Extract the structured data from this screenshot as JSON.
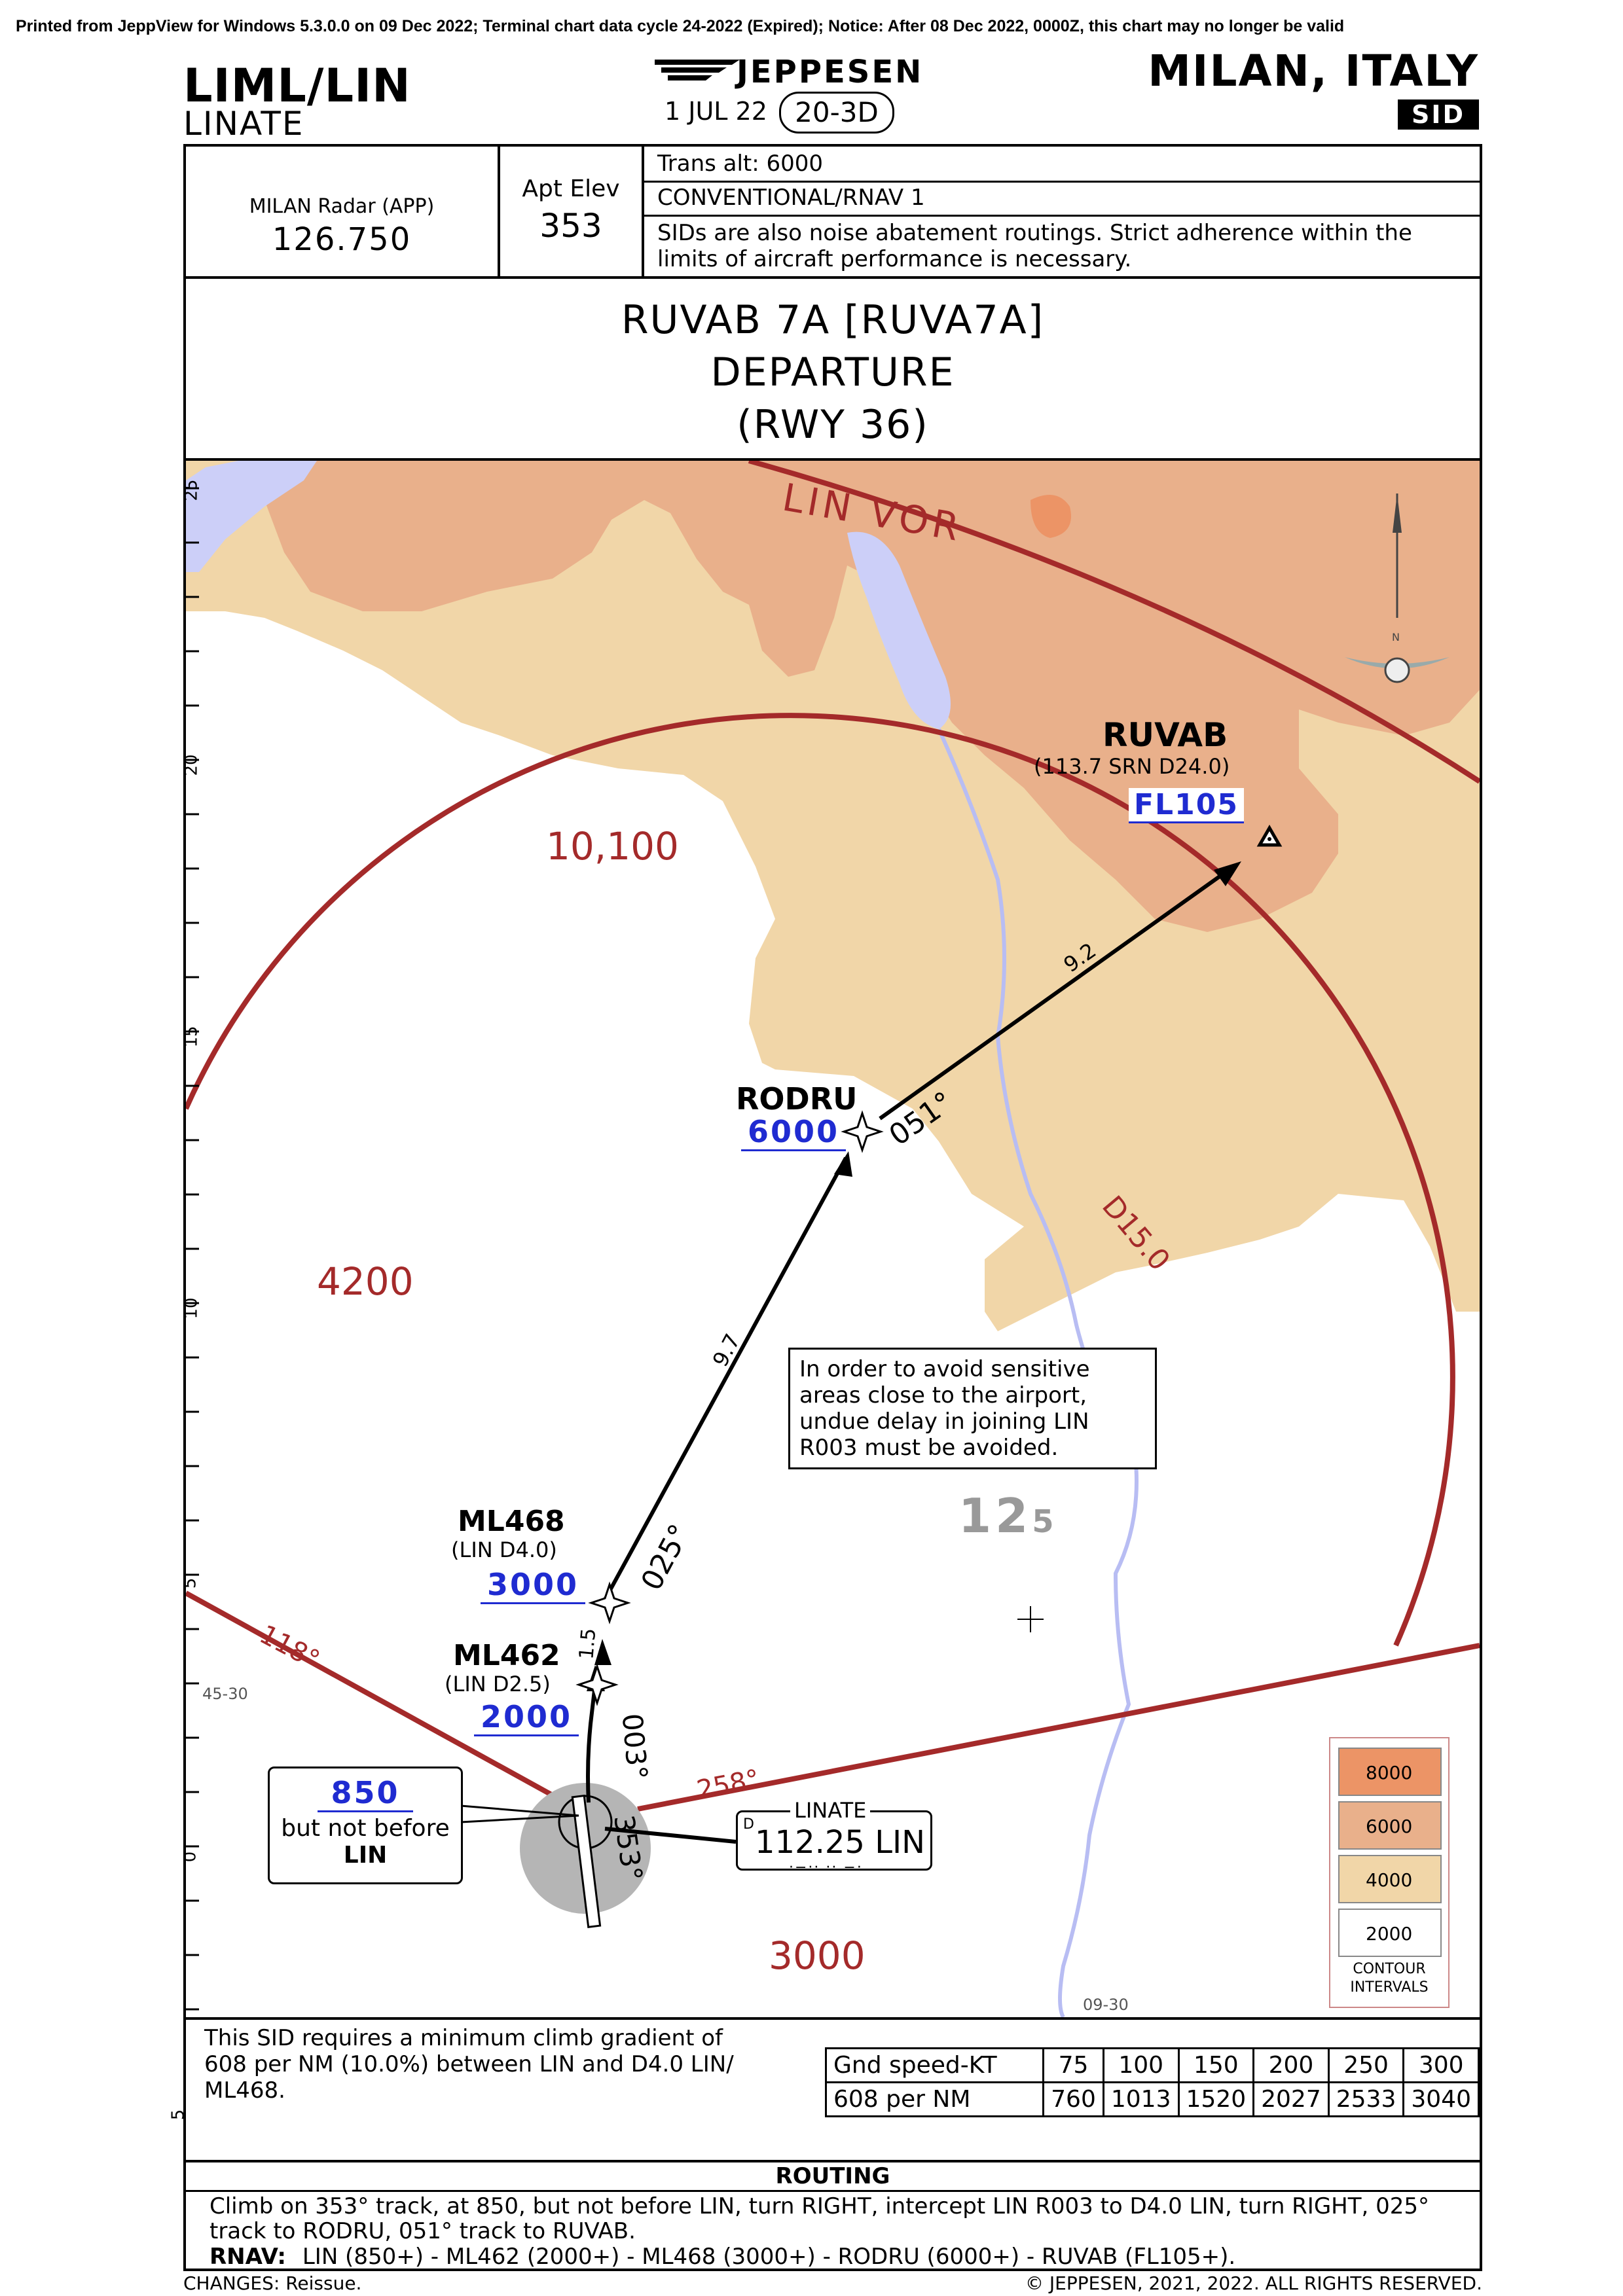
{
  "print_notice": "Printed from JeppView for Windows 5.3.0.0 on 09 Dec 2022; Terminal chart data cycle 24-2022 (Expired); Notice: After 08 Dec 2022, 0000Z, this chart may no longer be valid",
  "header": {
    "icao_iata": "LIML/LIN",
    "airport_name": "LINATE",
    "brand": "JEPPESEN",
    "effective_date": "1 JUL 22",
    "chart_number": "20-3D",
    "city_country": "MILAN, ITALY",
    "chart_type": "SID"
  },
  "info_strip": {
    "radar_label": "MILAN Radar (APP)",
    "radar_freq": "126.750",
    "elev_label": "Apt Elev",
    "elev_value": "353",
    "trans_alt": "Trans alt: 6000",
    "nav_spec": "CONVENTIONAL/RNAV 1",
    "noise_note_1": "SIDs are also noise abatement routings. Strict adherence within the",
    "noise_note_2": "limits of aircraft performance is necessary."
  },
  "title": {
    "line1": "RUVAB 7A [RUVA7A]",
    "line2": "DEPARTURE",
    "line3": "(RWY 36)"
  },
  "plan_view": {
    "scale_ticks": [
      "25",
      "20",
      "15",
      "10",
      "5",
      "0",
      "5"
    ],
    "vor_arc_label": "LIN VOR",
    "dme_arc_label": "D15.0",
    "msa_labels": [
      "10,100",
      "4200",
      "3000"
    ],
    "terrain_spot": "12",
    "terrain_spot_sub": "5",
    "grid_labels": [
      "45-30",
      "09-30"
    ],
    "radials": [
      "118°",
      "258°"
    ],
    "waypoints": {
      "ruvab": {
        "name": "RUVAB",
        "ref": "(113.7 SRN D24.0)",
        "altitude": "FL105"
      },
      "rodru": {
        "name": "RODRU",
        "altitude": "6000"
      },
      "ml468": {
        "name": "ML468",
        "ref": "(LIN D4.0)",
        "altitude": "3000"
      },
      "ml462": {
        "name": "ML462",
        "ref": "(LIN D2.5)",
        "altitude": "2000"
      }
    },
    "legs": {
      "rodru_ruvab_dist": "9.2",
      "rodru_ruvab_track": "051°",
      "ml468_rodru_dist": "9.7",
      "ml468_rodru_track": "025°",
      "ml462_ml468_dist": "1.5",
      "initial_track": "003°",
      "runway_track": "353°"
    },
    "altitude_box": {
      "altitude": "850",
      "text1": "but not before",
      "text2": "LIN"
    },
    "navaid": {
      "name": "LINATE",
      "freq": "112.25 LIN",
      "d_mark": "D"
    },
    "note": "In order to avoid sensitive areas close to the airport, undue delay in joining LIN R003 must be avoided.",
    "contour_legend": {
      "levels": [
        "8000",
        "6000",
        "4000",
        "2000"
      ],
      "colors": [
        "#ec9466",
        "#e9b08b",
        "#f1d6a8",
        "#ffffff"
      ],
      "title1": "CONTOUR",
      "title2": "INTERVALS"
    }
  },
  "climb": {
    "text": "This SID requires a minimum climb gradient of 608 per NM (10.0%) between LIN and D4.0 LIN/ ML468.",
    "speed_label": "Gnd speed-KT",
    "speeds": [
      "75",
      "100",
      "150",
      "200",
      "250",
      "300"
    ],
    "rate_label": "608 per NM",
    "rates": [
      "760",
      "1013",
      "1520",
      "2027",
      "2533",
      "3040"
    ]
  },
  "routing": {
    "heading": "ROUTING",
    "text": "Climb on 353° track, at 850, but not before LIN, turn RIGHT, intercept LIN R003 to D4.0 LIN, turn RIGHT, 025° track to RODRU, 051° track to RUVAB.",
    "rnav_label": "RNAV:",
    "rnav_text": "LIN (850+) - ML462 (2000+) - ML468 (3000+) - RODRU (6000+) - RUVAB (FL105+)."
  },
  "footer": {
    "changes": "CHANGES:  Reissue.",
    "copyright": "© JEPPESEN, 2021, 2022. ALL RIGHTS RESERVED."
  }
}
